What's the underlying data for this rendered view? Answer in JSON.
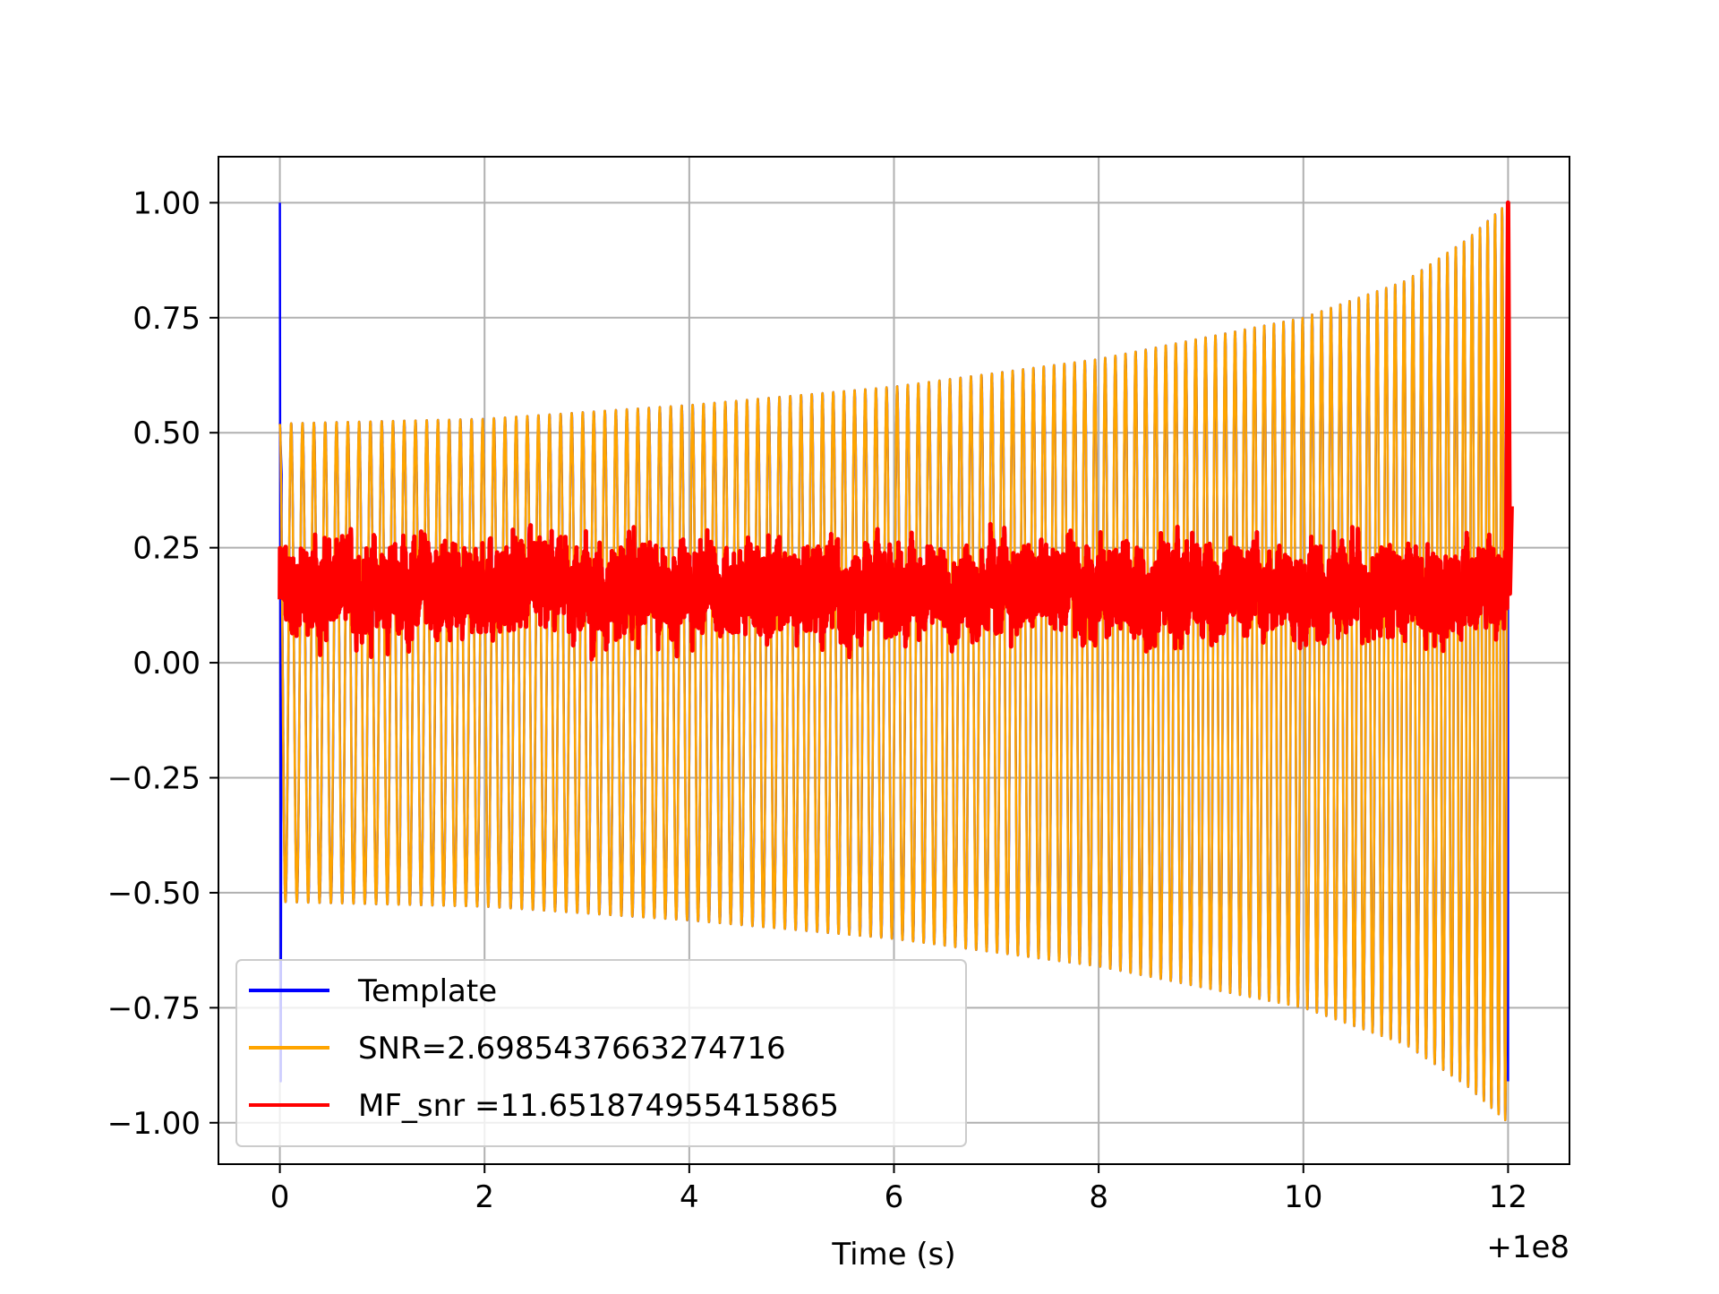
{
  "chart_data": {
    "type": "line",
    "title": "",
    "xlabel": "Time (s)",
    "ylabel": "",
    "x_offset_text": "+1e8",
    "xlim": [
      -0.6,
      12.6
    ],
    "ylim": [
      -1.09,
      1.1
    ],
    "xticks": [
      0,
      2,
      4,
      6,
      8,
      10,
      12
    ],
    "xtick_labels": [
      "0",
      "2",
      "4",
      "6",
      "8",
      "10",
      "12"
    ],
    "yticks": [
      1.0,
      0.75,
      0.5,
      0.25,
      0.0,
      -0.25,
      -0.5,
      -0.75,
      -1.0
    ],
    "ytick_labels": [
      "1.00",
      "0.75",
      "0.50",
      "0.25",
      "0.00",
      "−0.25",
      "−0.50",
      "−0.75",
      "−1.00"
    ],
    "grid": true,
    "legend_position": "lower-left",
    "series": [
      {
        "name": "Template",
        "color": "#0000ff",
        "description_of_shape": "chirp",
        "cycles": 120,
        "x_start": 0.0,
        "x_end": 12.0,
        "envelope": [
          [
            0.0,
            0.52
          ],
          [
            2.0,
            0.53
          ],
          [
            4.0,
            0.56
          ],
          [
            6.0,
            0.6
          ],
          [
            8.0,
            0.66
          ],
          [
            10.0,
            0.75
          ],
          [
            11.0,
            0.83
          ],
          [
            11.6,
            0.92
          ],
          [
            12.0,
            1.0
          ]
        ],
        "spike_at_start": {
          "x": 0.0,
          "max": 1.0,
          "min": -0.91
        }
      },
      {
        "name": "SNR=2.6985437663274716",
        "color": "#ffa500",
        "cycles": 120,
        "x_start": 0.0,
        "x_end": 12.0,
        "envelope": [
          [
            0.0,
            0.52
          ],
          [
            2.0,
            0.53
          ],
          [
            4.0,
            0.56
          ],
          [
            6.0,
            0.6
          ],
          [
            8.0,
            0.66
          ],
          [
            10.0,
            0.75
          ],
          [
            11.0,
            0.83
          ],
          [
            11.6,
            0.92
          ],
          [
            12.0,
            1.0
          ]
        ]
      },
      {
        "name": "MF_snr =11.651874955415865",
        "color": "#ff0000",
        "x_start": 0.0,
        "x_end": 12.0,
        "baseline_range": [
          0.0,
          0.37
        ],
        "peak_at_end": {
          "x": 12.0,
          "y": 1.0
        }
      }
    ]
  }
}
